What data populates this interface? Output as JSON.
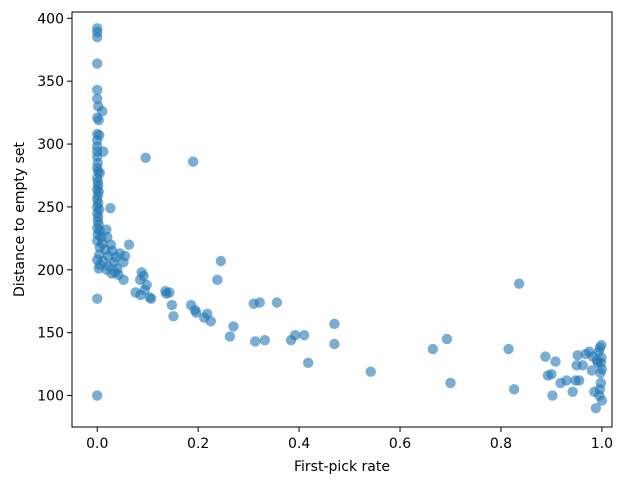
{
  "chart_data": {
    "type": "scatter",
    "xlabel": "First-pick rate",
    "ylabel": "Distance to empty set",
    "xlim": [
      -0.05,
      1.02
    ],
    "ylim": [
      75,
      405
    ],
    "xticks": [
      0.0,
      0.2,
      0.4,
      0.6,
      0.8,
      1.0
    ],
    "xtick_labels": [
      "0.0",
      "0.2",
      "0.4",
      "0.6",
      "0.8",
      "1.0"
    ],
    "yticks": [
      100,
      150,
      200,
      250,
      300,
      350,
      400
    ],
    "ytick_labels": [
      "100",
      "150",
      "200",
      "250",
      "300",
      "350",
      "400"
    ],
    "grid": false,
    "marker_color": "#1f77b4",
    "marker_alpha": 0.6,
    "series": [
      {
        "points": [
          [
            0.0,
            392
          ],
          [
            0.0,
            389
          ],
          [
            0.0,
            385
          ],
          [
            0.0,
            364
          ],
          [
            0.0,
            343
          ],
          [
            0.0,
            336
          ],
          [
            0.002,
            330
          ],
          [
            0.01,
            326
          ],
          [
            0.0,
            321
          ],
          [
            0.003,
            319
          ],
          [
            0.0,
            308
          ],
          [
            0.004,
            307
          ],
          [
            0.0,
            303
          ],
          [
            0.0,
            298
          ],
          [
            0.0,
            294
          ],
          [
            0.012,
            294
          ],
          [
            0.0,
            290
          ],
          [
            0.001,
            285
          ],
          [
            0.0,
            281
          ],
          [
            0.002,
            278
          ],
          [
            0.005,
            277
          ],
          [
            0.0,
            273
          ],
          [
            0.001,
            270
          ],
          [
            0.002,
            267
          ],
          [
            0.0,
            264
          ],
          [
            0.003,
            262
          ],
          [
            0.001,
            259
          ],
          [
            0.0,
            256
          ],
          [
            0.002,
            253
          ],
          [
            0.0,
            250
          ],
          [
            0.004,
            248
          ],
          [
            0.026,
            249
          ],
          [
            0.0,
            245
          ],
          [
            0.002,
            242
          ],
          [
            0.001,
            239
          ],
          [
            0.003,
            236
          ],
          [
            0.0,
            233
          ],
          [
            0.005,
            231
          ],
          [
            0.018,
            232
          ],
          [
            0.001,
            228
          ],
          [
            0.008,
            226
          ],
          [
            0.02,
            226
          ],
          [
            0.0,
            223
          ],
          [
            0.01,
            221
          ],
          [
            0.027,
            220
          ],
          [
            0.063,
            220
          ],
          [
            0.005,
            218
          ],
          [
            0.016,
            216
          ],
          [
            0.03,
            215
          ],
          [
            0.045,
            213
          ],
          [
            0.004,
            212
          ],
          [
            0.022,
            211
          ],
          [
            0.037,
            210
          ],
          [
            0.055,
            211
          ],
          [
            0.0,
            208
          ],
          [
            0.012,
            207
          ],
          [
            0.033,
            206
          ],
          [
            0.052,
            206
          ],
          [
            0.005,
            204
          ],
          [
            0.022,
            203
          ],
          [
            0.04,
            201
          ],
          [
            0.003,
            201
          ],
          [
            0.019,
            200
          ],
          [
            0.036,
            198
          ],
          [
            0.029,
            197
          ],
          [
            0.042,
            196
          ],
          [
            0.052,
            192
          ],
          [
            0.088,
            198
          ],
          [
            0.092,
            195
          ],
          [
            0.085,
            192
          ],
          [
            0.098,
            188
          ],
          [
            0.076,
            182
          ],
          [
            0.086,
            180
          ],
          [
            0.094,
            184
          ],
          [
            0.104,
            178
          ],
          [
            0.107,
            177
          ],
          [
            0.0,
            177
          ],
          [
            0.135,
            183
          ],
          [
            0.143,
            182
          ],
          [
            0.137,
            181
          ],
          [
            0.148,
            172
          ],
          [
            0.151,
            163
          ],
          [
            0.186,
            172
          ],
          [
            0.194,
            168
          ],
          [
            0.196,
            166
          ],
          [
            0.212,
            162
          ],
          [
            0.218,
            165
          ],
          [
            0.225,
            159
          ],
          [
            0.238,
            192
          ],
          [
            0.245,
            207
          ],
          [
            0.263,
            147
          ],
          [
            0.27,
            155
          ],
          [
            0.31,
            173
          ],
          [
            0.322,
            174
          ],
          [
            0.313,
            143
          ],
          [
            0.332,
            144
          ],
          [
            0.356,
            174
          ],
          [
            0.384,
            144
          ],
          [
            0.392,
            148
          ],
          [
            0.41,
            148
          ],
          [
            0.418,
            126
          ],
          [
            0.47,
            141
          ],
          [
            0.47,
            157
          ],
          [
            0.542,
            119
          ],
          [
            0.665,
            137
          ],
          [
            0.693,
            145
          ],
          [
            0.7,
            110
          ],
          [
            0.815,
            137
          ],
          [
            0.826,
            105
          ],
          [
            0.836,
            189
          ],
          [
            0.888,
            131
          ],
          [
            0.893,
            116
          ],
          [
            0.9,
            117
          ],
          [
            0.902,
            100
          ],
          [
            0.908,
            127
          ],
          [
            0.918,
            110
          ],
          [
            0.93,
            112
          ],
          [
            0.942,
            103
          ],
          [
            0.948,
            112
          ],
          [
            0.95,
            124
          ],
          [
            0.952,
            132
          ],
          [
            0.955,
            112
          ],
          [
            0.962,
            124
          ],
          [
            0.968,
            133
          ],
          [
            0.975,
            135
          ],
          [
            0.98,
            120
          ],
          [
            0.982,
            131
          ],
          [
            0.985,
            103
          ],
          [
            0.988,
            90
          ],
          [
            0.99,
            128
          ],
          [
            0.992,
            126
          ],
          [
            0.995,
            100
          ],
          [
            0.996,
            105
          ],
          [
            0.997,
            118
          ],
          [
            0.998,
            110
          ],
          [
            0.999,
            130
          ],
          [
            1.0,
            96
          ],
          [
            0.998,
            126
          ],
          [
            0.996,
            138
          ],
          [
            0.999,
            140
          ],
          [
            0.994,
            135
          ],
          [
            1.0,
            121
          ],
          [
            0.0,
            100
          ],
          [
            0.096,
            289
          ],
          [
            0.19,
            286
          ]
        ]
      }
    ]
  }
}
